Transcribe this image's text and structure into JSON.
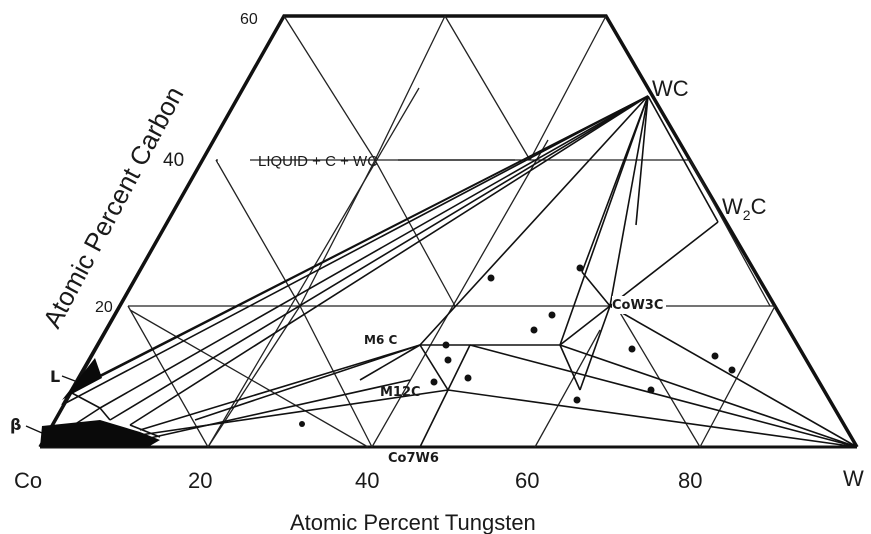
{
  "diagram": {
    "axis_bottom_title": "Atomic Percent Tungsten",
    "axis_left_title": "Atomic Percent Carbon",
    "bottom_ticks": [
      "20",
      "40",
      "60",
      "80"
    ],
    "left_ticks": [
      "60",
      "40",
      "20"
    ],
    "corner_left": "Co",
    "corner_right": "W",
    "labels": {
      "liquid_region": "LIQUID + C + WC",
      "wc": "WC",
      "w2c": "W",
      "w2c_sub": "2",
      "w2c_end": "C",
      "cow3c": "CoW3C",
      "m6c": "M6 C",
      "m12c": "M12C",
      "co7w6": "Co7W6",
      "liquid_l": "L",
      "beta": "β"
    },
    "colors": {
      "line": "#111111",
      "fill": "#0a0a0a",
      "text": "#1a1a1a"
    }
  }
}
